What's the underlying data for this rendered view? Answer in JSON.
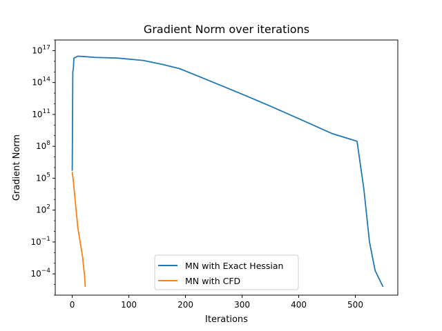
{
  "chart_data": {
    "type": "line",
    "title": "Gradient Norm  over iterations",
    "xlabel": "Iterations",
    "ylabel": "Gradient Norm",
    "xlim": [
      -30,
      575
    ],
    "ylim": [
      1e-06,
      1e+18
    ],
    "yscale": "log",
    "grid": false,
    "legend_position": "lower center",
    "x_ticks": [
      {
        "value": 0,
        "label": "0"
      },
      {
        "value": 100,
        "label": "100"
      },
      {
        "value": 200,
        "label": "200"
      },
      {
        "value": 300,
        "label": "300"
      },
      {
        "value": 400,
        "label": "400"
      },
      {
        "value": 500,
        "label": "500"
      }
    ],
    "y_ticks": [
      {
        "value": 0.0001,
        "base": "10",
        "exp": "−4"
      },
      {
        "value": 0.1,
        "base": "10",
        "exp": "−1"
      },
      {
        "value": 100.0,
        "base": "10",
        "exp": "2"
      },
      {
        "value": 100000.0,
        "base": "10",
        "exp": "5"
      },
      {
        "value": 100000000.0,
        "base": "10",
        "exp": "8"
      },
      {
        "value": 100000000000.0,
        "base": "10",
        "exp": "11"
      },
      {
        "value": 100000000000000.0,
        "base": "10",
        "exp": "14"
      },
      {
        "value": 1e+17,
        "base": "10",
        "exp": "17"
      }
    ],
    "series": [
      {
        "name": "MN with Exact Hessian",
        "color": "#1f77b4",
        "x": [
          0,
          1,
          2,
          3,
          10,
          20,
          40,
          80,
          125,
          160,
          190,
          250,
          300,
          350,
          400,
          460,
          503,
          515,
          525,
          535,
          549
        ],
        "y": [
          500000.0,
          1000000000000000.0,
          2000000000000000.0,
          2e+16,
          3e+16,
          2.8e+16,
          2.3e+16,
          2e+16,
          1.2e+16,
          5000000000000000.0,
          2000000000000000.0,
          100000000000000.0,
          8000000000000.0,
          600000000000.0,
          40000000000.0,
          1500000000.0,
          300000000.0,
          10000.0,
          0.1,
          0.0002,
          6e-06
        ]
      },
      {
        "name": "MN with CFD",
        "color": "#ff7f0e",
        "x": [
          0,
          2,
          6,
          10,
          14,
          18,
          20,
          22,
          23
        ],
        "y": [
          400000.0,
          50000.0,
          300.0,
          2,
          0.1,
          0.005,
          0.0005,
          5e-05,
          6e-06
        ]
      }
    ]
  }
}
